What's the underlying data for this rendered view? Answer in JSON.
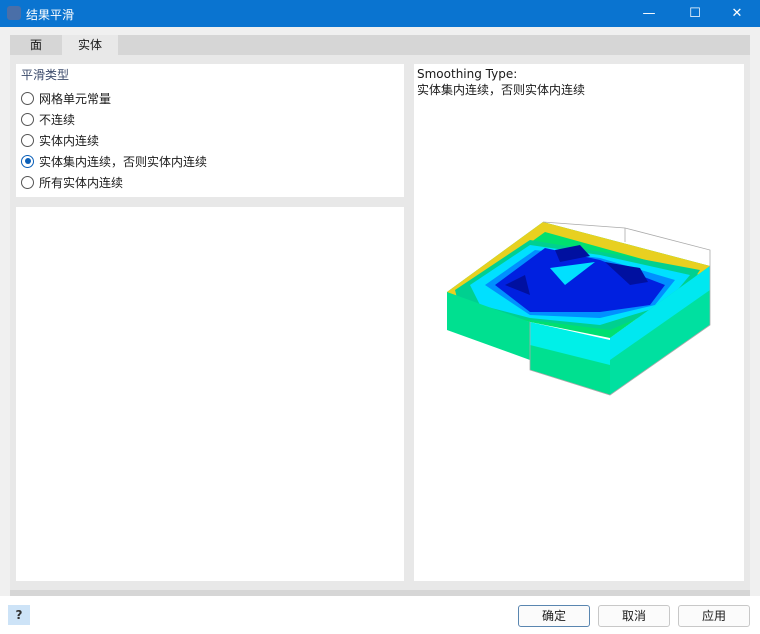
{
  "window": {
    "title": "结果平滑",
    "minimize": "—",
    "maximize": "☐",
    "close": "✕",
    "accent": "#0a74d0"
  },
  "tabs": [
    {
      "label": "面",
      "active": false
    },
    {
      "label": "实体",
      "active": true
    }
  ],
  "smoothing": {
    "group_label": "平滑类型",
    "options": [
      {
        "label": "网格单元常量",
        "selected": false
      },
      {
        "label": "不连续",
        "selected": false
      },
      {
        "label": "实体内连续",
        "selected": false
      },
      {
        "label": "实体集内连续，否则实体内连续",
        "selected": true
      },
      {
        "label": "所有实体内连续",
        "selected": false
      }
    ]
  },
  "preview": {
    "heading": "Smoothing Type:",
    "description": "实体集内连续，否则实体内连续"
  },
  "footer": {
    "help_icon": "help-icon",
    "ok": "确定",
    "cancel": "取消",
    "apply": "应用"
  }
}
